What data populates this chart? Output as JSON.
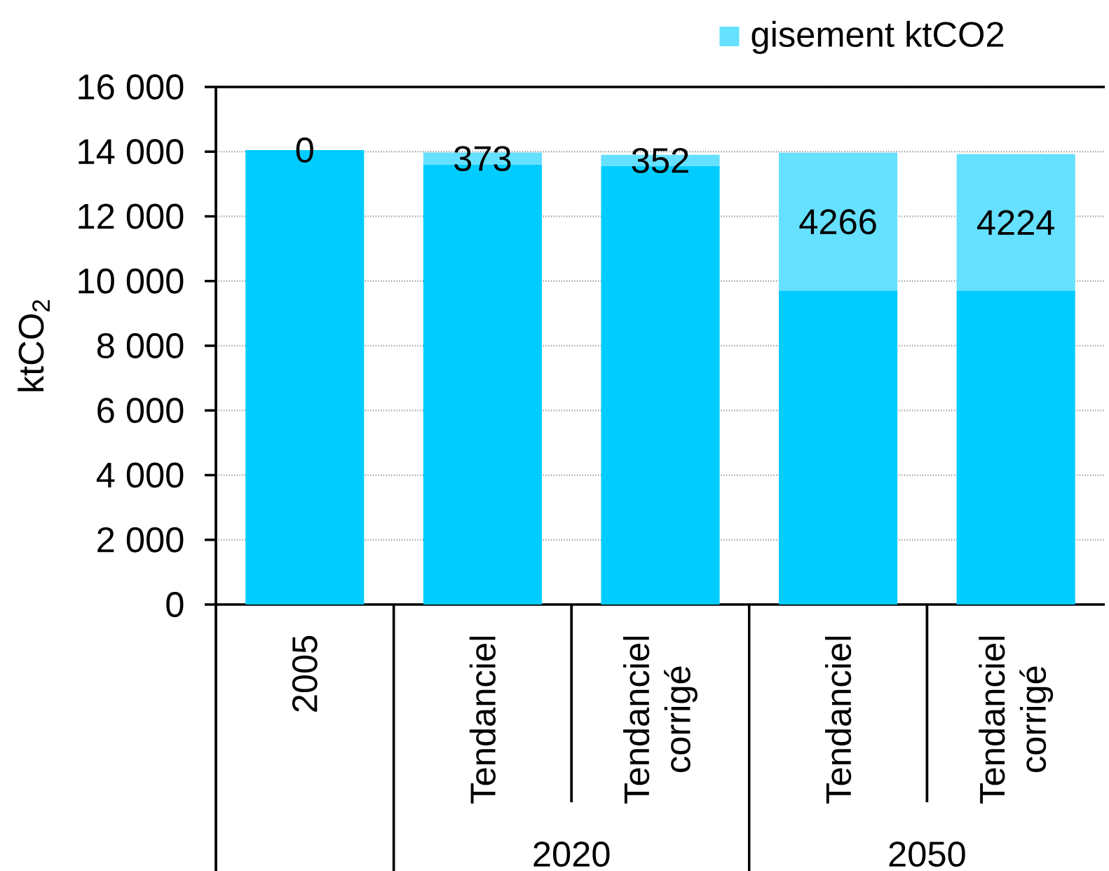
{
  "chart_data": {
    "type": "bar",
    "stacked": true,
    "categories": [
      "2005",
      "Tendanciel",
      "Tendanciel corrigé",
      "Tendanciel",
      "Tendanciel corrigé"
    ],
    "series": [
      {
        "color": "#00ccff",
        "values": [
          14050,
          13600,
          13550,
          9700,
          9700
        ]
      },
      {
        "name": "gisement ktCO2",
        "color": "#66e0ff",
        "values": [
          0,
          373,
          352,
          4266,
          4224
        ],
        "value_labels": [
          "0",
          "373",
          "352",
          "4266",
          "4224"
        ]
      }
    ],
    "ylabel": "ktCO$_{2}$",
    "ylim": [
      0,
      16000
    ],
    "yticks": [
      0,
      {
        "value": 2000,
        "label": "2 000"
      },
      {
        "value": 4000,
        "label": "4 000"
      },
      {
        "value": 6000,
        "label": "6 000"
      },
      {
        "value": 8000,
        "label": "8 000"
      },
      {
        "value": 10000,
        "label": "10 000"
      },
      {
        "value": 12000,
        "label": "12 000"
      },
      {
        "value": 14000,
        "label": "14 000"
      },
      {
        "value": 16000,
        "label": "16 000"
      }
    ],
    "grid": "y",
    "legend": "top right",
    "annotations": [
      "2020",
      "2050"
    ]
  }
}
